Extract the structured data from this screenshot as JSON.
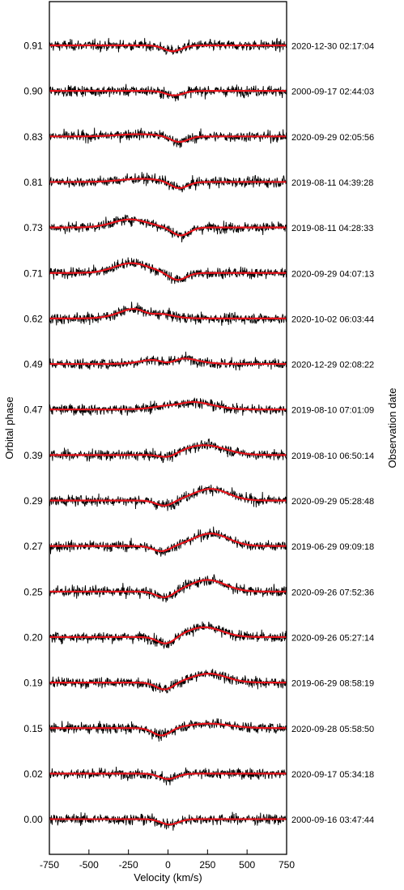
{
  "chart_data": {
    "type": "line",
    "xlabel": "Velocity (km/s)",
    "ylabel_left": "Orbital phase",
    "ylabel_right": "Observation date",
    "xlim": [
      -750,
      750
    ],
    "xticks": [
      -750,
      -500,
      -250,
      0,
      250,
      500,
      750
    ],
    "colors": {
      "data": "#000000",
      "model": "#e8141c"
    },
    "series": [
      {
        "phase": "0.91",
        "date": "2020-12-30 02:17:04",
        "abs_v": 30,
        "abs_depth": 0.13,
        "emis": []
      },
      {
        "phase": "0.90",
        "date": "2000-09-17 02:44:03",
        "abs_v": 40,
        "abs_depth": 0.1,
        "emis": []
      },
      {
        "phase": "0.83",
        "date": "2020-09-29 02:05:56",
        "abs_v": 70,
        "abs_depth": 0.13,
        "emis": [
          {
            "v": -190,
            "a": 0.05,
            "w": 130
          }
        ]
      },
      {
        "phase": "0.81",
        "date": "2019-08-11 04:39:28",
        "abs_v": 70,
        "abs_depth": 0.15,
        "emis": [
          {
            "v": -170,
            "a": 0.07,
            "w": 130
          }
        ]
      },
      {
        "phase": "0.73",
        "date": "2019-08-11 04:28:33",
        "abs_v": 80,
        "abs_depth": 0.18,
        "emis": [
          {
            "v": -240,
            "a": 0.18,
            "w": 110
          }
        ]
      },
      {
        "phase": "0.71",
        "date": "2020-09-29 04:07:13",
        "abs_v": 60,
        "abs_depth": 0.16,
        "emis": [
          {
            "v": -230,
            "a": 0.22,
            "w": 110
          }
        ]
      },
      {
        "phase": "0.62",
        "date": "2020-10-02 06:03:44",
        "abs_v": -120,
        "abs_depth": 0.12,
        "emis": [
          {
            "v": -170,
            "a": 0.26,
            "w": 120
          }
        ]
      },
      {
        "phase": "0.49",
        "date": "2020-12-29 02:08:22",
        "abs_v": 0,
        "abs_depth": 0.14,
        "emis": [
          {
            "v": 20,
            "a": 0.18,
            "w": 130
          }
        ]
      },
      {
        "phase": "0.47",
        "date": "2019-08-10 07:01:09",
        "abs_v": 60,
        "abs_depth": 0.04,
        "emis": [
          {
            "v": 130,
            "a": 0.18,
            "w": 140
          }
        ]
      },
      {
        "phase": "0.39",
        "date": "2019-08-10 06:50:14",
        "abs_v": 0,
        "abs_depth": 0.08,
        "emis": [
          {
            "v": 230,
            "a": 0.22,
            "w": 130
          }
        ]
      },
      {
        "phase": "0.29",
        "date": "2020-09-29 05:28:48",
        "abs_v": -20,
        "abs_depth": 0.12,
        "emis": [
          {
            "v": 270,
            "a": 0.26,
            "w": 110
          }
        ]
      },
      {
        "phase": "0.27",
        "date": "2019-06-29 09:09:18",
        "abs_v": -40,
        "abs_depth": 0.12,
        "emis": [
          {
            "v": 270,
            "a": 0.28,
            "w": 110
          }
        ]
      },
      {
        "phase": "0.25",
        "date": "2020-09-26 07:52:36",
        "abs_v": -20,
        "abs_depth": 0.14,
        "emis": [
          {
            "v": 250,
            "a": 0.26,
            "w": 110
          }
        ]
      },
      {
        "phase": "0.20",
        "date": "2020-09-26 05:27:14",
        "abs_v": -10,
        "abs_depth": 0.16,
        "emis": [
          {
            "v": 230,
            "a": 0.22,
            "w": 110
          }
        ]
      },
      {
        "phase": "0.19",
        "date": "2019-06-29 08:58:19",
        "abs_v": -20,
        "abs_depth": 0.16,
        "emis": [
          {
            "v": 260,
            "a": 0.2,
            "w": 110
          }
        ]
      },
      {
        "phase": "0.15",
        "date": "2020-09-28 05:58:50",
        "abs_v": -40,
        "abs_depth": 0.17,
        "emis": [
          {
            "v": 260,
            "a": 0.1,
            "w": 130
          }
        ]
      },
      {
        "phase": "0.02",
        "date": "2020-09-17 05:34:18",
        "abs_v": 0,
        "abs_depth": 0.12,
        "emis": []
      },
      {
        "phase": "0.00",
        "date": "2000-09-16 03:47:44",
        "abs_v": 10,
        "abs_depth": 0.12,
        "emis": []
      }
    ]
  }
}
